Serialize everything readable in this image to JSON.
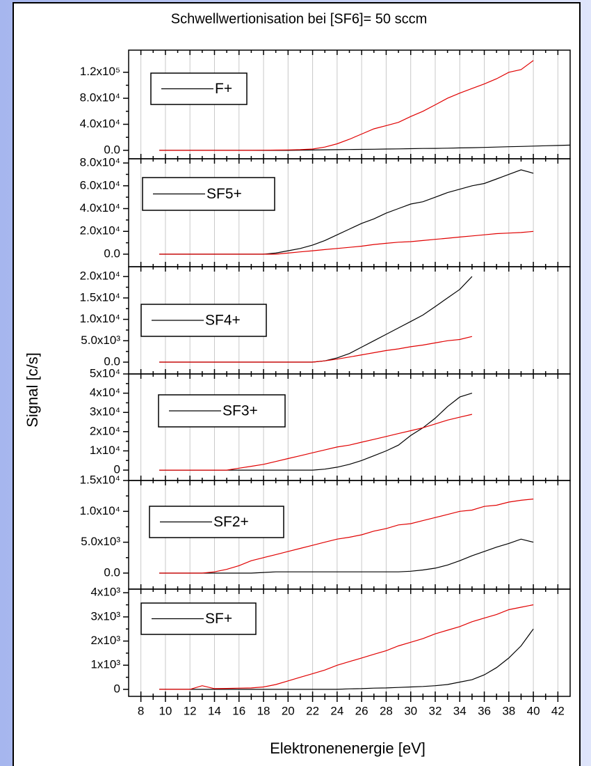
{
  "figure": {
    "title": "Schwellwertionisation bei [SF6]= 50 sccm",
    "xlabel": "Elektronenenergie [eV]",
    "ylabel": "Signal [c/s]"
  },
  "chart_data": [
    {
      "type": "line",
      "grid": true,
      "xlim": [
        7,
        43
      ],
      "xticks": [
        8,
        10,
        12,
        14,
        16,
        18,
        20,
        22,
        24,
        26,
        28,
        30,
        32,
        34,
        36,
        38,
        40,
        42
      ],
      "ylim": [
        -13000,
        154000
      ],
      "yticks": [
        {
          "value": 0,
          "label": "0.0"
        },
        {
          "value": 40000,
          "label": "4.0x10⁴"
        },
        {
          "value": 80000,
          "label": "8.0x10⁴"
        },
        {
          "value": 120000,
          "label": "1.2x10⁵"
        }
      ],
      "x": [
        9.5,
        10,
        11,
        12,
        13,
        14,
        15,
        16,
        17,
        18,
        19,
        20,
        21,
        22,
        23,
        24,
        25,
        26,
        27,
        28,
        29,
        30,
        31,
        32,
        33,
        34,
        35,
        36,
        37,
        38,
        39,
        40,
        41,
        42,
        43
      ],
      "series": [
        {
          "name": "F+",
          "color": "#000000",
          "values": [
            0,
            0,
            0,
            0,
            0,
            0,
            0,
            0,
            0,
            0,
            0,
            0,
            200,
            500,
            800,
            1000,
            1200,
            1500,
            1700,
            2000,
            2200,
            2500,
            2800,
            3000,
            3300,
            3700,
            4000,
            4500,
            5000,
            5500,
            6000,
            6500,
            7000,
            7500,
            8000
          ]
        },
        {
          "color": "#e00000",
          "values": [
            0,
            0,
            0,
            0,
            0,
            0,
            0,
            0,
            0,
            200,
            400,
            600,
            1000,
            2000,
            5000,
            10000,
            17000,
            25000,
            33000,
            38000,
            43000,
            52000,
            60000,
            70000,
            80000,
            88000,
            95000,
            102000,
            110000,
            120000,
            124000,
            138000,
            null,
            null,
            null
          ]
        }
      ]
    },
    {
      "type": "line",
      "grid": true,
      "xlim": [
        7,
        43
      ],
      "xticks": [
        8,
        10,
        12,
        14,
        16,
        18,
        20,
        22,
        24,
        26,
        28,
        30,
        32,
        34,
        36,
        38,
        40,
        42
      ],
      "ylim": [
        -11000,
        83700
      ],
      "yticks": [
        {
          "value": 0,
          "label": "0.0"
        },
        {
          "value": 20000,
          "label": "2.0x10⁴"
        },
        {
          "value": 40000,
          "label": "4.0x10⁴"
        },
        {
          "value": 60000,
          "label": "6.0x10⁴"
        },
        {
          "value": 80000,
          "label": "8.0x10⁴"
        }
      ],
      "x": [
        9.5,
        10,
        11,
        12,
        13,
        14,
        15,
        16,
        17,
        18,
        19,
        20,
        21,
        22,
        23,
        24,
        25,
        26,
        27,
        28,
        29,
        30,
        31,
        32,
        33,
        34,
        35,
        36,
        37,
        38,
        39,
        40
      ],
      "series": [
        {
          "name": "SF5+",
          "color": "#000000",
          "values": [
            0,
            0,
            0,
            0,
            0,
            0,
            0,
            0,
            0,
            0,
            1000,
            3000,
            5000,
            8000,
            12000,
            17000,
            22000,
            27000,
            31000,
            36000,
            40000,
            44000,
            46000,
            50000,
            54000,
            57000,
            60000,
            62000,
            66000,
            70000,
            74000,
            71000
          ]
        },
        {
          "color": "#e00000",
          "values": [
            0,
            0,
            0,
            0,
            0,
            0,
            0,
            0,
            0,
            0,
            0,
            1000,
            2000,
            3000,
            4000,
            5000,
            6000,
            7000,
            8500,
            9500,
            10500,
            11000,
            12000,
            13000,
            14000,
            15000,
            16000,
            17000,
            18000,
            18500,
            19000,
            20000
          ]
        }
      ]
    },
    {
      "type": "line",
      "grid": true,
      "xlim": [
        7,
        43
      ],
      "xticks": [
        8,
        10,
        12,
        14,
        16,
        18,
        20,
        22,
        24,
        26,
        28,
        30,
        32,
        34,
        36,
        38,
        40,
        42
      ],
      "ylim": [
        -2760,
        22300
      ],
      "yticks": [
        {
          "value": 0,
          "label": "0.0"
        },
        {
          "value": 5000,
          "label": "5.0x10³"
        },
        {
          "value": 10000,
          "label": "1.0x10⁴"
        },
        {
          "value": 15000,
          "label": "1.5x10⁴"
        },
        {
          "value": 20000,
          "label": "2.0x10⁴"
        }
      ],
      "x": [
        9.5,
        10,
        11,
        12,
        13,
        14,
        15,
        16,
        17,
        18,
        19,
        20,
        21,
        22,
        23,
        24,
        25,
        26,
        27,
        28,
        29,
        30,
        31,
        32,
        33,
        34,
        35
      ],
      "series": [
        {
          "name": "SF4+",
          "color": "#000000",
          "values": [
            0,
            0,
            0,
            0,
            0,
            0,
            0,
            0,
            0,
            0,
            0,
            0,
            0,
            0,
            300,
            1000,
            2000,
            3500,
            5000,
            6500,
            8000,
            9500,
            11000,
            13000,
            15000,
            17000,
            20000
          ]
        },
        {
          "color": "#e00000",
          "values": [
            0,
            0,
            0,
            0,
            0,
            0,
            0,
            0,
            0,
            0,
            0,
            0,
            0,
            0,
            300,
            700,
            1200,
            1700,
            2200,
            2700,
            3100,
            3600,
            4000,
            4500,
            5000,
            5300,
            6000
          ]
        }
      ]
    },
    {
      "type": "line",
      "grid": true,
      "xlim": [
        7,
        43
      ],
      "xticks": [
        8,
        10,
        12,
        14,
        16,
        18,
        20,
        22,
        24,
        26,
        28,
        30,
        32,
        34,
        36,
        38,
        40,
        42
      ],
      "ylim": [
        -5400,
        50000
      ],
      "yticks": [
        0,
        {
          "value": 10000,
          "label": "1x10⁴"
        },
        {
          "value": 20000,
          "label": "2x10⁴"
        },
        {
          "value": 30000,
          "label": "3x10⁴"
        },
        {
          "value": 40000,
          "label": "4x10⁴"
        },
        {
          "value": 50000,
          "label": "5x10⁴"
        }
      ],
      "x": [
        9.5,
        10,
        11,
        12,
        13,
        14,
        15,
        16,
        17,
        18,
        19,
        20,
        21,
        22,
        23,
        24,
        25,
        26,
        27,
        28,
        29,
        30,
        31,
        32,
        33,
        34,
        35
      ],
      "series": [
        {
          "name": "SF3+",
          "color": "#000000",
          "values": [
            0,
            0,
            0,
            0,
            0,
            0,
            0,
            0,
            0,
            0,
            0,
            0,
            0,
            0,
            500,
            1500,
            3000,
            5000,
            7500,
            10000,
            13000,
            18000,
            22000,
            27000,
            33000,
            38000,
            40000
          ]
        },
        {
          "color": "#e00000",
          "values": [
            0,
            0,
            0,
            0,
            0,
            0,
            0,
            1000,
            2000,
            3000,
            4500,
            6000,
            7500,
            9000,
            10500,
            12000,
            13000,
            14500,
            16000,
            17500,
            19000,
            20500,
            22000,
            24000,
            26000,
            27500,
            29000
          ]
        }
      ]
    },
    {
      "type": "line",
      "grid": true,
      "xlim": [
        7,
        43
      ],
      "xticks": [
        8,
        10,
        12,
        14,
        16,
        18,
        20,
        22,
        24,
        26,
        28,
        30,
        32,
        34,
        36,
        38,
        40,
        42
      ],
      "ylim": [
        -2600,
        15000
      ],
      "yticks": [
        {
          "value": 0,
          "label": "0.0"
        },
        {
          "value": 5000,
          "label": "5.0x10³"
        },
        {
          "value": 10000,
          "label": "1.0x10⁴"
        },
        {
          "value": 15000,
          "label": "1.5x10⁴"
        }
      ],
      "x": [
        9.5,
        10,
        11,
        12,
        13,
        14,
        15,
        16,
        17,
        18,
        19,
        20,
        21,
        22,
        23,
        24,
        25,
        26,
        27,
        28,
        29,
        30,
        31,
        32,
        33,
        34,
        35,
        36,
        37,
        38,
        39,
        40
      ],
      "series": [
        {
          "name": "SF2+",
          "color": "#000000",
          "values": [
            0,
            0,
            0,
            0,
            0,
            0,
            0,
            0,
            0,
            100,
            200,
            200,
            200,
            200,
            200,
            200,
            200,
            200,
            200,
            200,
            200,
            300,
            500,
            800,
            1300,
            2000,
            2800,
            3500,
            4200,
            4800,
            5500,
            5000
          ]
        },
        {
          "color": "#e00000",
          "values": [
            0,
            0,
            0,
            0,
            0,
            200,
            600,
            1200,
            2000,
            2500,
            3000,
            3500,
            4000,
            4500,
            5000,
            5500,
            5800,
            6200,
            6800,
            7200,
            7800,
            8000,
            8500,
            9000,
            9500,
            10000,
            10200,
            10800,
            11000,
            11500,
            11800,
            12000
          ]
        }
      ]
    },
    {
      "type": "line",
      "grid": true,
      "xlim": [
        7,
        43
      ],
      "xticks": [
        8,
        10,
        12,
        14,
        16,
        18,
        20,
        22,
        24,
        26,
        28,
        30,
        32,
        34,
        36,
        38,
        40,
        42
      ],
      "ylim": [
        -290,
        4150
      ],
      "yticks": [
        0,
        {
          "value": 1000,
          "label": "1x10³"
        },
        {
          "value": 2000,
          "label": "2x10³"
        },
        {
          "value": 3000,
          "label": "3x10³"
        },
        {
          "value": 4000,
          "label": "4x10³"
        }
      ],
      "x": [
        9.5,
        10,
        11,
        12,
        13,
        14,
        15,
        16,
        17,
        18,
        19,
        20,
        21,
        22,
        23,
        24,
        25,
        26,
        27,
        28,
        29,
        30,
        31,
        32,
        33,
        34,
        35,
        36,
        37,
        38,
        39,
        40
      ],
      "series": [
        {
          "name": "SF+",
          "color": "#000000",
          "values": [
            0,
            0,
            0,
            0,
            0,
            0,
            0,
            0,
            0,
            0,
            0,
            0,
            0,
            0,
            0,
            0,
            20,
            30,
            50,
            60,
            80,
            100,
            120,
            150,
            200,
            300,
            400,
            600,
            900,
            1300,
            1800,
            2500
          ]
        },
        {
          "color": "#e00000",
          "values": [
            0,
            0,
            0,
            0,
            150,
            30,
            40,
            50,
            60,
            100,
            200,
            350,
            500,
            650,
            800,
            1000,
            1150,
            1300,
            1450,
            1600,
            1800,
            1950,
            2100,
            2300,
            2450,
            2600,
            2800,
            2950,
            3100,
            3300,
            3400,
            3500
          ]
        }
      ]
    }
  ]
}
